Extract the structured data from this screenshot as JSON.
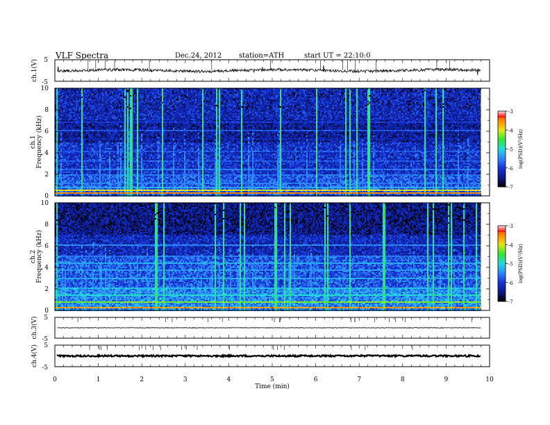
{
  "header": {
    "title": "VLF  Spectra",
    "date": "Dec.24, 2012",
    "station": "station=ATH",
    "start": "start  UT  =   22:10:0"
  },
  "colors": {
    "spectrogram_scale": [
      "#000000",
      "#0b1a8a",
      "#1533d6",
      "#2f88ff",
      "#22dddd",
      "#33e633",
      "#e6e61a",
      "#ff8800",
      "#e01010",
      "#ffffff"
    ]
  },
  "chart_data": [
    {
      "type": "line",
      "panel": "ch1-waveform",
      "ylabel": "ch.1(V)",
      "yticks": [
        "5",
        "-5"
      ],
      "ylim": [
        -5,
        5
      ],
      "xlim": [
        0,
        10
      ],
      "data_end_min": 9.8,
      "baseline_v": 0,
      "grid": false
    },
    {
      "type": "heatmap",
      "panel": "ch1-spectrogram",
      "ylabel": "Frequency  (kHz)",
      "channel_label": "ch.1",
      "yticks": [
        "0",
        "2",
        "4",
        "6",
        "8",
        "10"
      ],
      "ylim": [
        0,
        10
      ],
      "xlim": [
        0,
        10
      ],
      "data_end_min": 9.8,
      "colorbar": {
        "label": "log(PSD)(V²/Hz)",
        "ticks": [
          "-3",
          "-4",
          "-5",
          "-6",
          "-7"
        ],
        "range": [
          -7,
          -3
        ]
      }
    },
    {
      "type": "heatmap",
      "panel": "ch2-spectrogram",
      "ylabel": "Frequency  (kHz)",
      "channel_label": "ch.2",
      "yticks": [
        "0",
        "2",
        "4",
        "6",
        "8",
        "10"
      ],
      "ylim": [
        0,
        10
      ],
      "xlim": [
        0,
        10
      ],
      "data_end_min": 9.8,
      "colorbar": {
        "label": "log(PSD)(V²/Hz)",
        "ticks": [
          "-3",
          "-4",
          "-5",
          "-6",
          "-7"
        ],
        "range": [
          -7,
          -3
        ]
      }
    },
    {
      "type": "line",
      "panel": "ch3-waveform",
      "ylabel": "ch.3(V)",
      "yticks": [
        "5",
        "-5"
      ],
      "ylim": [
        -5,
        5
      ],
      "xlim": [
        0,
        10
      ],
      "data_end_min": 9.8,
      "baseline_v": 0,
      "grid": false
    },
    {
      "type": "line",
      "panel": "ch4-waveform",
      "ylabel": "ch.4(V)",
      "yticks": [
        "5",
        "-5"
      ],
      "ylim": [
        -5,
        5
      ],
      "xlim": [
        0,
        10
      ],
      "data_end_min": 9.8,
      "baseline_v": 0,
      "grid": false
    }
  ],
  "xaxis": {
    "label": "Time  (min)",
    "ticks": [
      "0",
      "1",
      "2",
      "3",
      "4",
      "5",
      "6",
      "7",
      "8",
      "9",
      "10"
    ]
  }
}
